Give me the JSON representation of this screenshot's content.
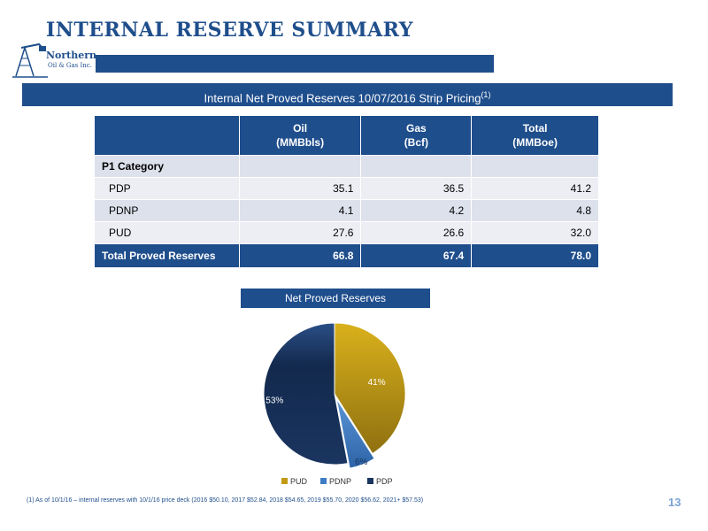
{
  "header": {
    "title": "INTERNAL RESERVE SUMMARY",
    "logo_line1": "Northern",
    "logo_line2": "Oil & Gas Inc."
  },
  "banner": {
    "text": "Internal Net Proved Reserves 10/07/2016 Strip Pricing",
    "footnote_ref": "(1)"
  },
  "table": {
    "headers": [
      {
        "line1": "",
        "line2": ""
      },
      {
        "line1": "Oil",
        "line2": "(MMBbls)"
      },
      {
        "line1": "Gas",
        "line2": "(Bcf)"
      },
      {
        "line1": "Total",
        "line2": "(MMBoe)"
      }
    ],
    "category": "P1 Category",
    "rows": [
      {
        "label": "PDP",
        "oil": "35.1",
        "gas": "36.5",
        "total": "41.2"
      },
      {
        "label": "PDNP",
        "oil": "4.1",
        "gas": "4.2",
        "total": "4.8"
      },
      {
        "label": "PUD",
        "oil": "27.6",
        "gas": "26.6",
        "total": "32.0"
      }
    ],
    "total_row": {
      "label": "Total Proved Reserves",
      "oil": "66.8",
      "gas": "67.4",
      "total": "78.0"
    }
  },
  "chart_data": {
    "type": "pie",
    "title": "Net Proved Reserves",
    "slices": [
      {
        "name": "PUD",
        "value": 41,
        "label": "41%",
        "color": "#c29a14"
      },
      {
        "name": "PDNP",
        "value": 6,
        "label": "6%",
        "color": "#3f7cc4"
      },
      {
        "name": "PDP",
        "value": 53,
        "label": "53%",
        "color": "#1a3560"
      }
    ],
    "legend_placement": "bottom"
  },
  "footnote": "(1)     As of  10/1/16 – internal reserves with 10/1/16 price deck (2016 $50.10, 2017 $52.84, 2018 $54.65, 2019 $55.70, 2020 $56.62, 2021+ $57.53)",
  "page_number": "13"
}
